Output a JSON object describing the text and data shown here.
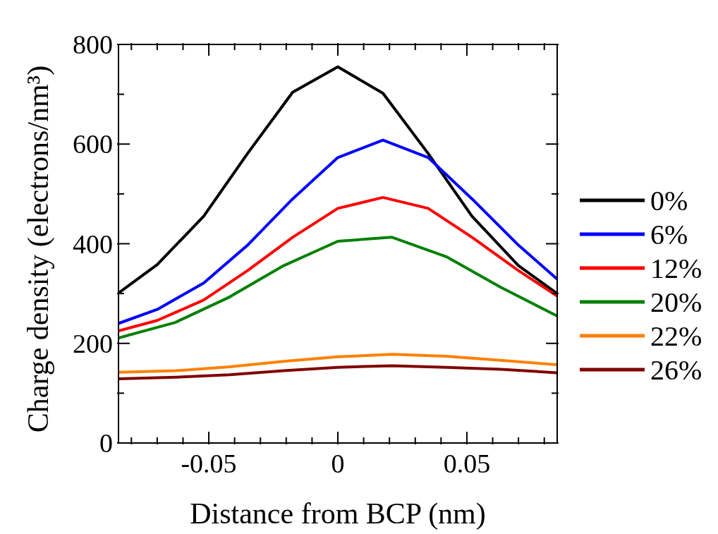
{
  "chart_data": {
    "type": "line",
    "xlabel": "Distance from BCP (nm)",
    "ylabel": "Charge density (electrons/nm³)",
    "xlim": [
      -0.085,
      0.085
    ],
    "xticks": [
      {
        "value": -0.08,
        "label": null
      },
      {
        "value": -0.07,
        "label": null
      },
      {
        "value": -0.06,
        "label": null
      },
      -0.05,
      {
        "value": -0.04,
        "label": null
      },
      {
        "value": -0.03,
        "label": null
      },
      {
        "value": -0.02,
        "label": null
      },
      {
        "value": -0.01,
        "label": null
      },
      0,
      {
        "value": 0.01,
        "label": null
      },
      {
        "value": 0.02,
        "label": null
      },
      {
        "value": 0.03,
        "label": null
      },
      {
        "value": 0.04,
        "label": null
      },
      0.05,
      {
        "value": 0.06,
        "label": null
      },
      {
        "value": 0.07,
        "label": null
      },
      {
        "value": 0.08,
        "label": null
      }
    ],
    "ylim": [
      0,
      800
    ],
    "yticks": [
      0,
      {
        "value": 100,
        "label": null
      },
      200,
      {
        "value": 300,
        "label": null
      },
      400,
      {
        "value": 500,
        "label": null
      },
      600,
      {
        "value": 700,
        "label": null
      },
      800
    ],
    "legend": "right",
    "marker": "none",
    "line_style": "solid",
    "series": [
      {
        "name": "0%",
        "color": "#000000",
        "x": [
          -0.085,
          -0.07,
          -0.052,
          -0.035,
          -0.0175,
          0,
          0.0175,
          0.035,
          0.052,
          0.07,
          0.085
        ],
        "values": [
          301,
          358,
          455,
          581,
          704,
          755,
          702,
          581,
          455,
          356,
          300
        ]
      },
      {
        "name": "6%",
        "color": "#0000ff",
        "x": [
          -0.085,
          -0.07,
          -0.052,
          -0.035,
          -0.0175,
          0,
          0.0175,
          0.035,
          0.052,
          0.07,
          0.085
        ],
        "values": [
          240,
          268,
          321,
          397,
          490,
          573,
          608,
          573,
          490,
          397,
          329
        ]
      },
      {
        "name": "12%",
        "color": "#ff0000",
        "x": [
          -0.085,
          -0.07,
          -0.052,
          -0.035,
          -0.0175,
          0,
          0.0175,
          0.035,
          0.052,
          0.07,
          0.085
        ],
        "values": [
          225,
          246,
          287,
          346,
          413,
          471,
          493,
          471,
          413,
          346,
          295
        ]
      },
      {
        "name": "20%",
        "color": "#008000",
        "x": [
          -0.085,
          -0.063,
          -0.042,
          -0.021,
          0,
          0.021,
          0.042,
          0.063,
          0.085
        ],
        "values": [
          211,
          242,
          293,
          356,
          405,
          413,
          374,
          313,
          255
        ]
      },
      {
        "name": "22%",
        "color": "#ff8000",
        "x": [
          -0.085,
          -0.063,
          -0.042,
          -0.021,
          0,
          0.021,
          0.042,
          0.063,
          0.085
        ],
        "values": [
          142,
          145,
          153,
          164,
          173,
          178,
          174,
          166,
          157
        ]
      },
      {
        "name": "26%",
        "color": "#800000",
        "x": [
          -0.085,
          -0.063,
          -0.042,
          -0.021,
          0,
          0.021,
          0.042,
          0.063,
          0.085
        ],
        "values": [
          129,
          132,
          137,
          145,
          152,
          155,
          152,
          148,
          141
        ]
      }
    ]
  }
}
